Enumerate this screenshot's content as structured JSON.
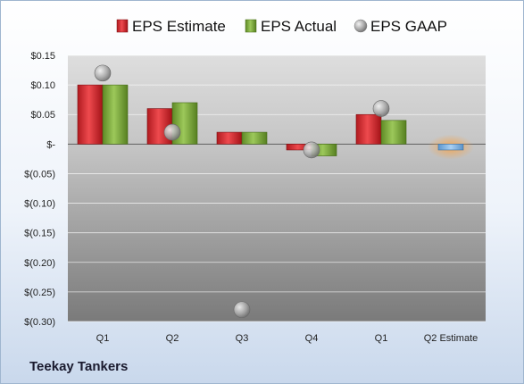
{
  "company": "Teekay Tankers",
  "chart_data": {
    "type": "bar",
    "categories": [
      "Q1",
      "Q2",
      "Q3",
      "Q4",
      "Q1",
      "Q2 Estimate"
    ],
    "series": [
      {
        "name": "EPS Estimate",
        "values": [
          0.1,
          0.06,
          0.02,
          -0.01,
          0.05,
          -0.01
        ],
        "color": "#d0252a"
      },
      {
        "name": "EPS Actual",
        "values": [
          0.1,
          0.07,
          0.02,
          -0.02,
          0.04,
          null
        ],
        "color": "#7ca83a"
      },
      {
        "name": "EPS GAAP",
        "type": "scatter",
        "values": [
          0.12,
          0.02,
          -0.28,
          -0.01,
          0.06,
          null
        ],
        "color": "#9a9a9a"
      }
    ],
    "highlight": {
      "category": "Q2 Estimate",
      "color": "#7fb4e6",
      "glow": "#f5a34a"
    },
    "ylim": [
      -0.3,
      0.15
    ],
    "yticks": [
      0.15,
      0.1,
      0.05,
      0,
      -0.05,
      -0.1,
      -0.15,
      -0.2,
      -0.25,
      -0.3
    ],
    "ytick_labels": [
      "$0.15",
      "$0.10",
      "$0.05",
      "$-",
      "$(0.05)",
      "$(0.10)",
      "$(0.15)",
      "$(0.20)",
      "$(0.25)",
      "$(0.30)"
    ],
    "grid": true,
    "legend": "top"
  }
}
